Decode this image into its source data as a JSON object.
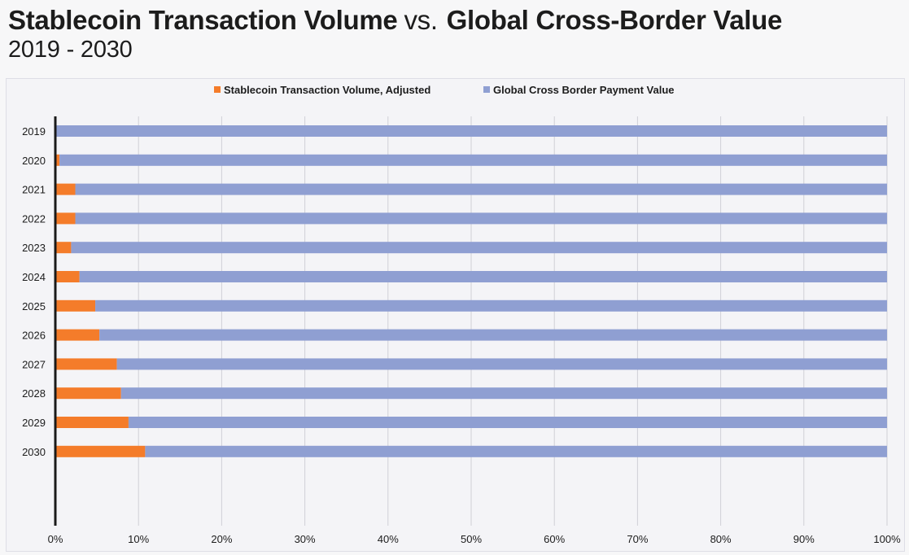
{
  "header": {
    "title_part1": "Stablecoin Transaction Volume",
    "title_vs": "vs.",
    "title_part2": "Global Cross-Border Value",
    "subtitle": "2019 - 2030"
  },
  "chart_data": {
    "type": "bar",
    "orientation": "horizontal",
    "stacked": "percent",
    "categories": [
      "2019",
      "2020",
      "2021",
      "2022",
      "2023",
      "2024",
      "2025",
      "2026",
      "2027",
      "2028",
      "2029",
      "2030"
    ],
    "series": [
      {
        "name": "Stablecoin Transaction Volume, Adjusted",
        "color": "#f47c2a",
        "values": [
          0.1,
          0.5,
          2.4,
          2.4,
          1.9,
          2.9,
          4.8,
          5.3,
          7.4,
          7.9,
          8.8,
          10.8
        ]
      },
      {
        "name": "Global Cross Border Payment Value",
        "color": "#8f9fd2",
        "values": [
          99.9,
          99.5,
          97.6,
          97.6,
          98.1,
          97.1,
          95.2,
          94.7,
          92.6,
          92.1,
          91.2,
          89.2
        ]
      }
    ],
    "xlim": [
      0,
      100
    ],
    "xticks": [
      "0%",
      "10%",
      "20%",
      "30%",
      "40%",
      "50%",
      "60%",
      "70%",
      "80%",
      "90%",
      "100%"
    ],
    "grid": true,
    "legend_position": "top-center"
  }
}
